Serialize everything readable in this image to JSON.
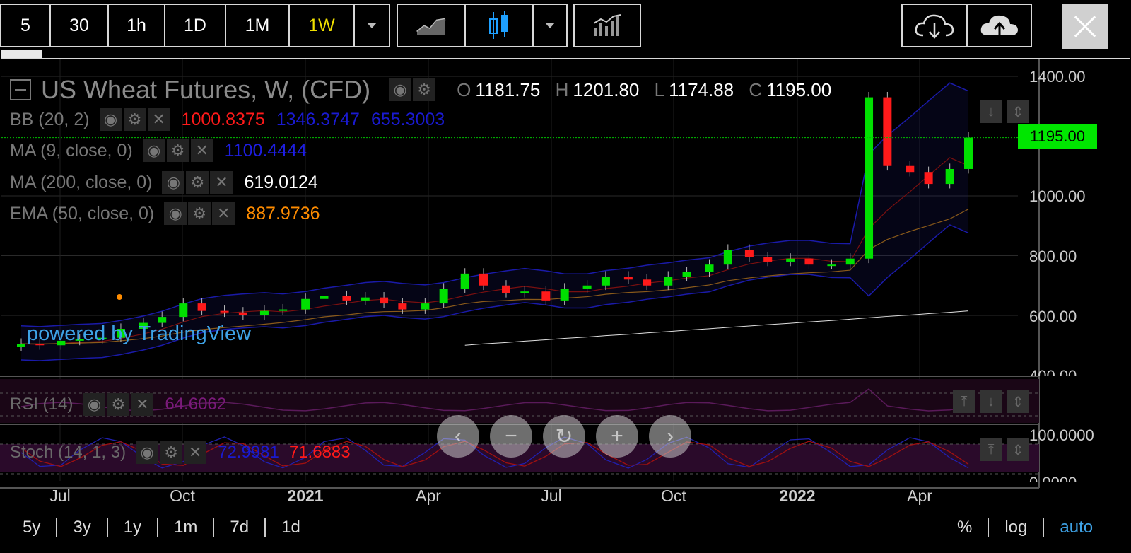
{
  "toolbar": {
    "intervals": [
      "5",
      "30",
      "1h",
      "1D",
      "1M",
      "1W"
    ],
    "active_interval": "1W"
  },
  "symbol": {
    "title": "US Wheat Futures, W, (CFD)",
    "o_key": "O",
    "open": "1181.75",
    "h_key": "H",
    "high": "1201.80",
    "l_key": "L",
    "low": "1174.88",
    "c_key": "C",
    "close": "1195.00"
  },
  "indicators": {
    "bb": {
      "label": "BB (20, 2)",
      "v1": "1000.8375",
      "v2": "1346.3747",
      "v3": "655.3003"
    },
    "ma9": {
      "label": "MA (9, close, 0)",
      "v1": "1100.4444"
    },
    "ma200": {
      "label": "MA (200, close, 0)",
      "v1": "619.0124"
    },
    "ema50": {
      "label": "EMA (50, close, 0)",
      "v1": "887.9736"
    },
    "rsi": {
      "label": "RSI (14)",
      "v1": "64.6062"
    },
    "stoch": {
      "label": "Stoch (14, 1, 3)",
      "v1": "72.9981",
      "v2": "71.6883"
    }
  },
  "price_axis": [
    "1400.00",
    "1000.00",
    "800.00",
    "600.00",
    "400.00"
  ],
  "last_price_tag": "1195.00",
  "stoch_axis": [
    "100.0000",
    "0.0000"
  ],
  "x_axis": [
    {
      "label": "Jul",
      "bold": false
    },
    {
      "label": "Oct",
      "bold": false
    },
    {
      "label": "2021",
      "bold": true
    },
    {
      "label": "Apr",
      "bold": false
    },
    {
      "label": "Jul",
      "bold": false
    },
    {
      "label": "Oct",
      "bold": false
    },
    {
      "label": "2022",
      "bold": true
    },
    {
      "label": "Apr",
      "bold": false
    }
  ],
  "ranges": [
    "5y",
    "3y",
    "1y",
    "1m",
    "7d",
    "1d"
  ],
  "scale_modes": [
    "%",
    "log",
    "auto"
  ],
  "active_scale": "auto",
  "watermark": "powered by TradingView",
  "colors": {
    "up": "#00e000",
    "down": "#ff1a1a",
    "bb": "#1a1aa8",
    "ma9": "#1e1ee0",
    "ma200": "#e0e0e0",
    "ema50": "#ff8c00",
    "accent": "#f0e000",
    "link": "#3ea2e6"
  },
  "chart_data": {
    "type": "candlestick",
    "title": "US Wheat Futures, W, (CFD)",
    "x": [
      "2020-06-01",
      "2020-06-15",
      "2020-07-01",
      "2020-07-15",
      "2020-08-01",
      "2020-08-15",
      "2020-09-01",
      "2020-09-15",
      "2020-10-01",
      "2020-10-15",
      "2020-11-01",
      "2020-11-15",
      "2020-12-01",
      "2020-12-15",
      "2021-01-01",
      "2021-01-15",
      "2021-02-01",
      "2021-02-15",
      "2021-03-01",
      "2021-03-15",
      "2021-04-01",
      "2021-04-15",
      "2021-05-01",
      "2021-05-15",
      "2021-06-01",
      "2021-06-15",
      "2021-07-01",
      "2021-07-15",
      "2021-08-01",
      "2021-08-15",
      "2021-09-01",
      "2021-09-15",
      "2021-10-01",
      "2021-10-15",
      "2021-11-01",
      "2021-11-15",
      "2021-12-01",
      "2021-12-15",
      "2022-01-01",
      "2022-01-15",
      "2022-02-01",
      "2022-02-15",
      "2022-03-01",
      "2022-03-15",
      "2022-04-01",
      "2022-04-15",
      "2022-05-01",
      "2022-05-15"
    ],
    "close": [
      505,
      500,
      515,
      520,
      525,
      555,
      575,
      595,
      640,
      615,
      610,
      600,
      615,
      620,
      655,
      665,
      650,
      660,
      640,
      620,
      640,
      690,
      740,
      700,
      675,
      680,
      650,
      690,
      700,
      730,
      720,
      700,
      730,
      745,
      770,
      820,
      795,
      780,
      790,
      770,
      770,
      790,
      1330,
      1100,
      1080,
      1040,
      1090,
      1195
    ],
    "y_range": [
      400,
      1400
    ],
    "ylabel": "",
    "price_ticks": [
      400,
      600,
      800,
      1000,
      1400
    ],
    "last_price": 1195.0,
    "ohlc_last": {
      "open": 1181.75,
      "high": 1201.8,
      "low": 1174.88,
      "close": 1195.0
    },
    "overlays": [
      "BB (20, 2)",
      "MA (9, close, 0)",
      "MA (200, close, 0)",
      "EMA (50, close, 0)"
    ],
    "panes": [
      "RSI (14)",
      "Stoch (14, 1, 3)"
    ],
    "stoch_range": [
      0,
      100
    ]
  }
}
